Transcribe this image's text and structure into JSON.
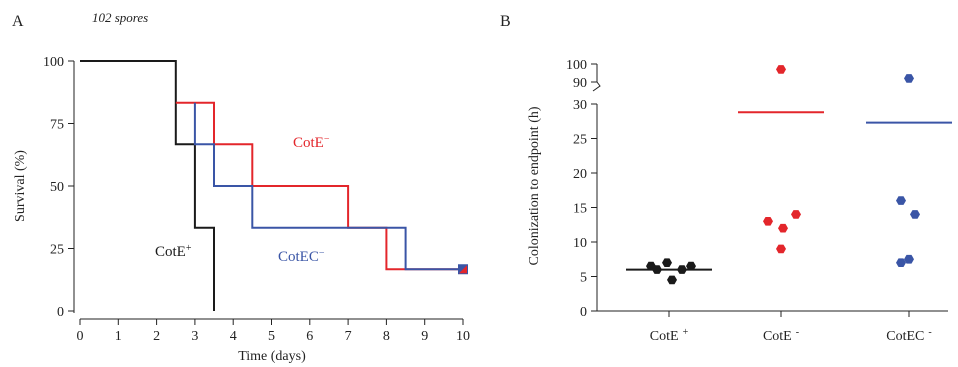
{
  "colors": {
    "black": "#1a1a1a",
    "red": "#e3262b",
    "blue": "#3a55a6"
  },
  "chart_data": [
    {
      "type": "line",
      "panel_label": "A",
      "annotation": "102 spores",
      "xlabel": "Time (days)",
      "ylabel": "Survival (%)",
      "xlim": [
        0,
        10
      ],
      "ylim": [
        0,
        100
      ],
      "xticks": [
        "0",
        "1",
        "2",
        "3",
        "4",
        "5",
        "6",
        "7",
        "8",
        "9",
        "10"
      ],
      "yticks": [
        "0",
        "25",
        "50",
        "75",
        "100"
      ],
      "series": [
        {
          "name": "CotE+",
          "label_base": "CotE",
          "label_sup": "+",
          "color": "#1a1a1a",
          "steps": [
            [
              0,
              100
            ],
            [
              2.5,
              100
            ],
            [
              2.5,
              66.7
            ],
            [
              3,
              66.7
            ],
            [
              3,
              33.3
            ],
            [
              3.5,
              33.3
            ],
            [
              3.5,
              0
            ]
          ]
        },
        {
          "name": "CotE−",
          "label_base": "CotE",
          "label_sup": "−",
          "color": "#e3262b",
          "steps": [
            [
              2.5,
              83.3
            ],
            [
              3.5,
              83.3
            ],
            [
              3.5,
              66.7
            ],
            [
              4.5,
              66.7
            ],
            [
              4.5,
              50
            ],
            [
              7,
              50
            ],
            [
              7,
              33.3
            ],
            [
              8,
              33.3
            ],
            [
              8,
              16.7
            ],
            [
              10,
              16.7
            ]
          ]
        },
        {
          "name": "CotEC−",
          "label_base": "CotEC",
          "label_sup": "−",
          "color": "#3a55a6",
          "steps": [
            [
              3,
              83.3
            ],
            [
              3,
              66.7
            ],
            [
              3.5,
              66.7
            ],
            [
              3.5,
              50
            ],
            [
              4.5,
              50
            ],
            [
              4.5,
              33.3
            ],
            [
              8.5,
              33.3
            ],
            [
              8.5,
              16.7
            ],
            [
              10,
              16.7
            ]
          ]
        }
      ]
    },
    {
      "type": "scatter",
      "panel_label": "B",
      "ylabel": "Colonization to endpoint (h)",
      "yticks_lower": [
        "0",
        "5",
        "10",
        "15",
        "20",
        "25",
        "30"
      ],
      "yticks_upper": [
        "90",
        "100"
      ],
      "ylim_lower": [
        0,
        30
      ],
      "ylim_upper": [
        90,
        100
      ],
      "categories": [
        {
          "label_base": "CotE",
          "label_sup": "+",
          "color": "#1a1a1a",
          "points": [
            6.5,
            6.0,
            7.0,
            4.5,
            6.0,
            6.5
          ],
          "mean": 6.0
        },
        {
          "label_base": "CotE",
          "label_sup": "-",
          "color": "#e3262b",
          "points": [
            13,
            12,
            9,
            14,
            97
          ],
          "mean": 28.8
        },
        {
          "label_base": "CotEC",
          "label_sup": "-",
          "color": "#3a55a6",
          "points": [
            16,
            7,
            7.5,
            14,
            92
          ],
          "mean": 27.3
        }
      ]
    }
  ]
}
